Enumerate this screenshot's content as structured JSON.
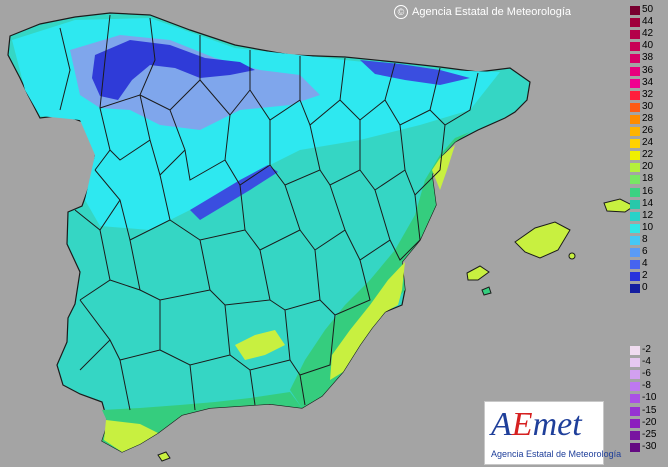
{
  "map": {
    "copyright": "Agencia Estatal de Meteorología",
    "colors": {
      "background": "#a4a4a4",
      "land_mild": "#35d6c4",
      "land_cool": "#2ee8f0",
      "land_cold": "#7fa6ec",
      "land_coldest": "#2f3bd8",
      "land_warm": "#35cd7e",
      "land_hot": "#c8f040",
      "borders": "#1b1b1b"
    }
  },
  "legend": {
    "positive": [
      {
        "label": "50",
        "color": "#780030"
      },
      {
        "label": "44",
        "color": "#a0003c"
      },
      {
        "label": "42",
        "color": "#b4004a"
      },
      {
        "label": "40",
        "color": "#c80055"
      },
      {
        "label": "38",
        "color": "#d80068"
      },
      {
        "label": "36",
        "color": "#e8007e"
      },
      {
        "label": "34",
        "color": "#f00090"
      },
      {
        "label": "32",
        "color": "#ff1e3c"
      },
      {
        "label": "30",
        "color": "#ff5a14"
      },
      {
        "label": "28",
        "color": "#ff8c00"
      },
      {
        "label": "26",
        "color": "#ffb400"
      },
      {
        "label": "24",
        "color": "#ffd200"
      },
      {
        "label": "22",
        "color": "#f0f000"
      },
      {
        "label": "20",
        "color": "#b4f03c"
      },
      {
        "label": "18",
        "color": "#78e664"
      },
      {
        "label": "16",
        "color": "#3cd282"
      },
      {
        "label": "14",
        "color": "#28c8aa"
      },
      {
        "label": "12",
        "color": "#28d2c8"
      },
      {
        "label": "10",
        "color": "#32e6e6"
      },
      {
        "label": "8",
        "color": "#46c8f5"
      },
      {
        "label": "6",
        "color": "#5a9bf5"
      },
      {
        "label": "4",
        "color": "#4664f0"
      },
      {
        "label": "2",
        "color": "#2832dc"
      },
      {
        "label": "0",
        "color": "#141ea0"
      }
    ],
    "negative": [
      {
        "label": "-2",
        "color": "#f0dcf0"
      },
      {
        "label": "-4",
        "color": "#e6c8f0"
      },
      {
        "label": "-6",
        "color": "#d2a0f0"
      },
      {
        "label": "-8",
        "color": "#be78f0"
      },
      {
        "label": "-10",
        "color": "#aa50e6"
      },
      {
        "label": "-15",
        "color": "#9632d2"
      },
      {
        "label": "-20",
        "color": "#8c1ebe"
      },
      {
        "label": "-25",
        "color": "#7814a0"
      },
      {
        "label": "-30",
        "color": "#640a82"
      }
    ]
  },
  "logo": {
    "part_a": "A",
    "part_e": "E",
    "part_rest": "met",
    "subtitle": "Agencia Estatal de Meteorología"
  }
}
